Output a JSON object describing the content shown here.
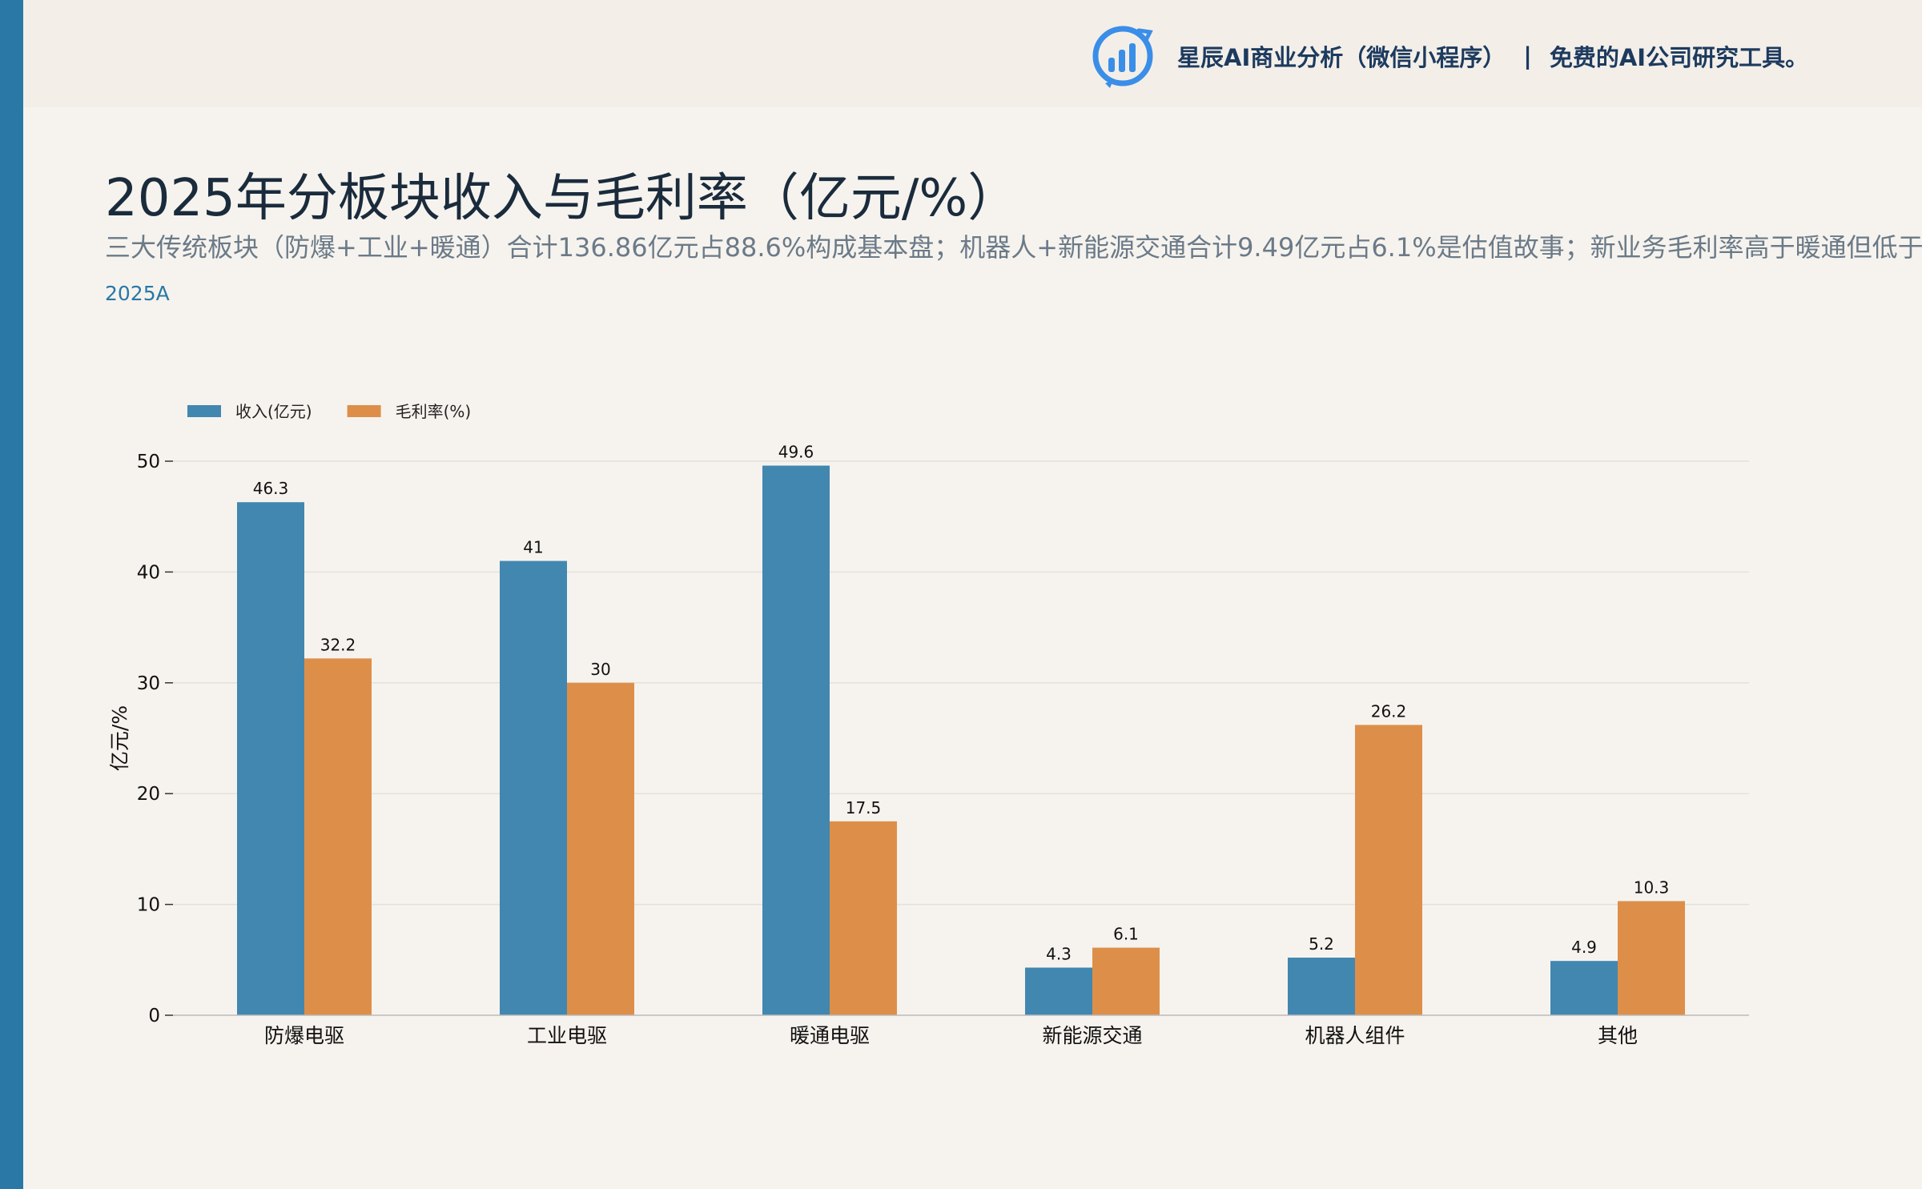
{
  "header": {
    "brand_name": "星辰AI商业分析（微信小程序）",
    "separator": "|",
    "tagline": "免费的AI公司研究工具。"
  },
  "title": "2025年分板块收入与毛利率（亿元/%）",
  "subtitle": "三大传统板块（防爆+工业+暖通）合计136.86亿元占88.6%构成基本盘；机器人+新能源交通合计9.49亿元占6.1%是估值故事；新业务毛利率高于暖通但低于",
  "period": "2025A",
  "colors": {
    "revenue": "#4287b0",
    "margin": "#dd8f4a",
    "accent": "#2a78a6"
  },
  "chart_data": {
    "type": "bar",
    "categories": [
      "防爆电驱",
      "工业电驱",
      "暖通电驱",
      "新能源交通",
      "机器人组件",
      "其他"
    ],
    "series": [
      {
        "name": "收入(亿元)",
        "values": [
          46.3,
          41,
          49.6,
          4.3,
          5.2,
          4.9
        ]
      },
      {
        "name": "毛利率(%)",
        "values": [
          32.2,
          30,
          17.5,
          6.1,
          26.2,
          10.3
        ]
      }
    ],
    "ylabel": "亿元/%",
    "ylim": [
      0,
      50
    ],
    "yticks": [
      0,
      10,
      20,
      30,
      40,
      50
    ],
    "grid": true,
    "legend": "top-left"
  }
}
